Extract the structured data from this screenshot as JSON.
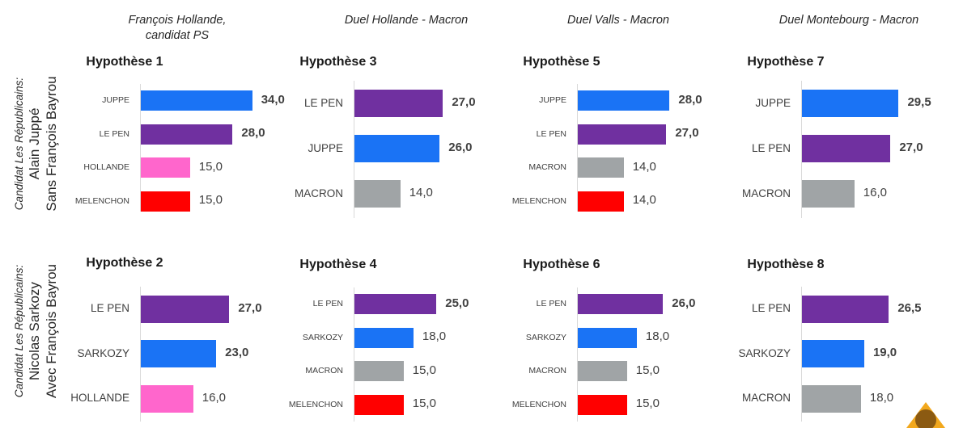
{
  "column_headers": [
    {
      "line1": "François Hollande,",
      "line2": "candidat PS"
    },
    {
      "line1": "Duel Hollande - Macron",
      "line2": ""
    },
    {
      "line1": "Duel Valls - Macron",
      "line2": ""
    },
    {
      "line1": "Duel Montebourg - Macron",
      "line2": ""
    }
  ],
  "row_headers": [
    {
      "line1": "Candidat Les Républicains:",
      "line2": "Alain Juppé",
      "line3": "Sans François Bayrou"
    },
    {
      "line1": "Candidat Les Républicains:",
      "line2": "Nicolas Sarkozy",
      "line3": "Avec François Bayrou"
    }
  ],
  "colors": {
    "JUPPE": "#1a73f5",
    "SARKOZY": "#1a73f5",
    "LE PEN": "#7030a0",
    "HOLLANDE": "#ff66cc",
    "MELENCHON": "#ff0000",
    "MACRON": "#a0a4a6"
  },
  "chart_data": [
    {
      "type": "bar",
      "orientation": "horizontal",
      "title": "Hypothèse 1",
      "categories": [
        "JUPPE",
        "LE PEN",
        "HOLLANDE",
        "MELENCHON"
      ],
      "values": [
        34.0,
        28.0,
        15.0,
        15.0
      ],
      "value_labels": [
        "34,0",
        "28,0",
        "15,0",
        "15,0"
      ]
    },
    {
      "type": "bar",
      "orientation": "horizontal",
      "title": "Hypothèse 3",
      "categories": [
        "LE PEN",
        "JUPPE",
        "MACRON"
      ],
      "values": [
        27.0,
        26.0,
        14.0
      ],
      "value_labels": [
        "27,0",
        "26,0",
        "14,0"
      ]
    },
    {
      "type": "bar",
      "orientation": "horizontal",
      "title": "Hypothèse 5",
      "categories": [
        "JUPPE",
        "LE PEN",
        "MACRON",
        "MELENCHON"
      ],
      "values": [
        28.0,
        27.0,
        14.0,
        14.0
      ],
      "value_labels": [
        "28,0",
        "27,0",
        "14,0",
        "14,0"
      ]
    },
    {
      "type": "bar",
      "orientation": "horizontal",
      "title": "Hypothèse 7",
      "categories": [
        "JUPPE",
        "LE PEN",
        "MACRON"
      ],
      "values": [
        29.5,
        27.0,
        16.0
      ],
      "value_labels": [
        "29,5",
        "27,0",
        "16,0"
      ]
    },
    {
      "type": "bar",
      "orientation": "horizontal",
      "title": "Hypothèse 2",
      "categories": [
        "LE PEN",
        "SARKOZY",
        "HOLLANDE"
      ],
      "values": [
        27.0,
        23.0,
        16.0
      ],
      "value_labels": [
        "27,0",
        "23,0",
        "16,0"
      ]
    },
    {
      "type": "bar",
      "orientation": "horizontal",
      "title": "Hypothèse 4",
      "categories": [
        "LE PEN",
        "SARKOZY",
        "MACRON",
        "MELENCHON"
      ],
      "values": [
        25.0,
        18.0,
        15.0,
        15.0
      ],
      "value_labels": [
        "25,0",
        "18,0",
        "15,0",
        "15,0"
      ]
    },
    {
      "type": "bar",
      "orientation": "horizontal",
      "title": "Hypothèse 6",
      "categories": [
        "LE PEN",
        "SARKOZY",
        "MACRON",
        "MELENCHON"
      ],
      "values": [
        26.0,
        18.0,
        15.0,
        15.0
      ],
      "value_labels": [
        "26,0",
        "18,0",
        "15,0",
        "15,0"
      ]
    },
    {
      "type": "bar",
      "orientation": "horizontal",
      "title": "Hypothèse 8",
      "categories": [
        "LE PEN",
        "SARKOZY",
        "MACRON"
      ],
      "values": [
        26.5,
        19.0,
        18.0
      ],
      "value_labels": [
        "26,5",
        "19,0",
        "18,0"
      ]
    }
  ]
}
